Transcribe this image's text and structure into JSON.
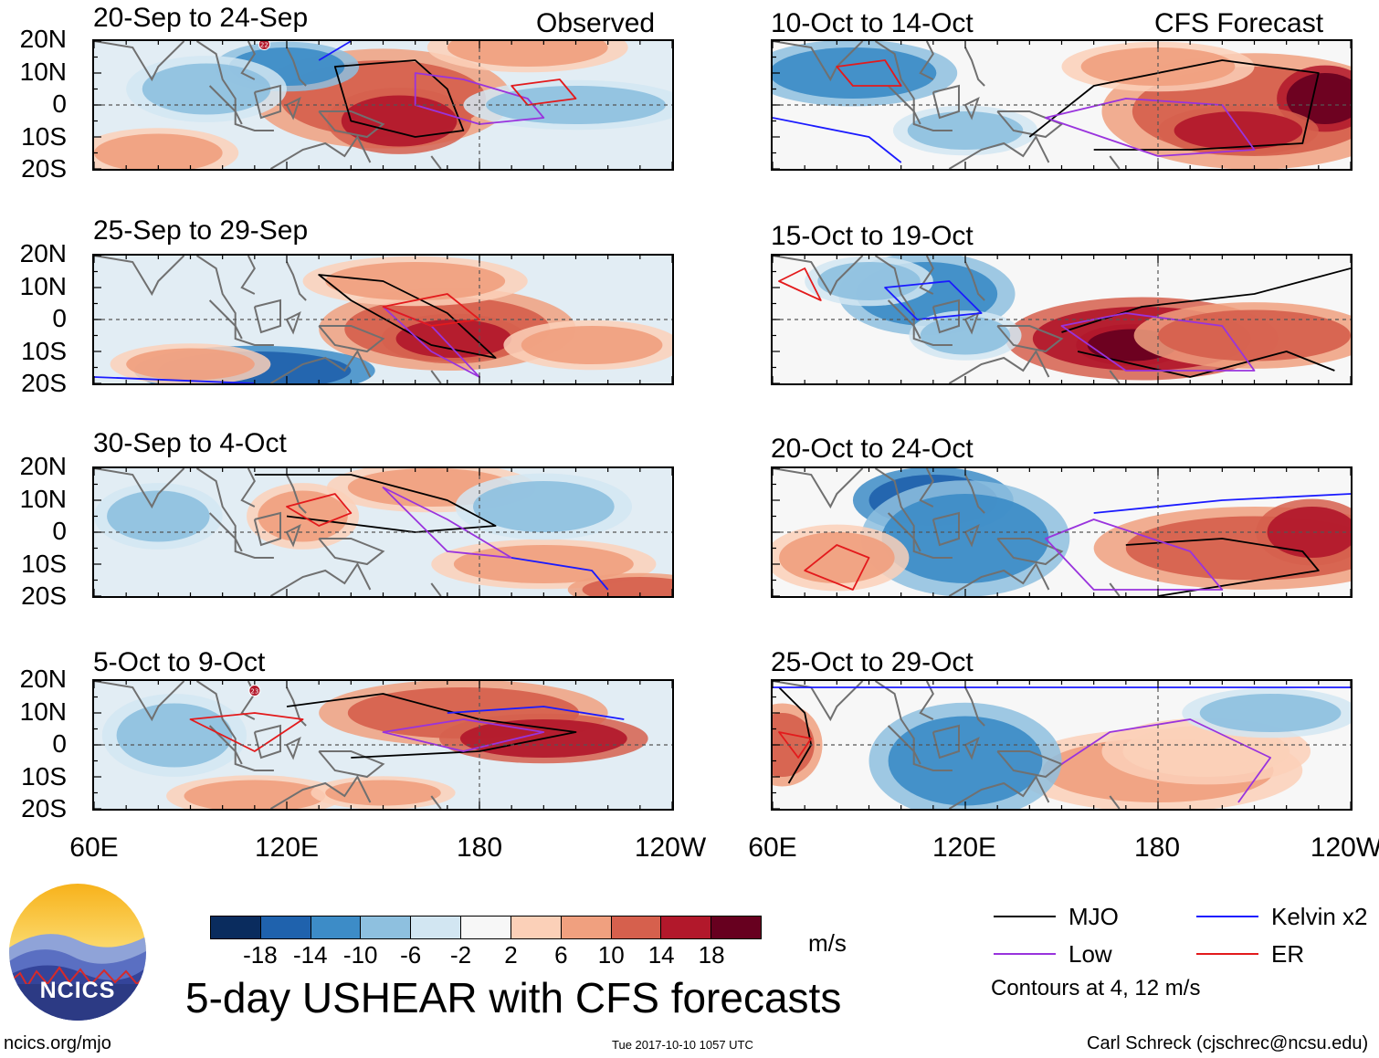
{
  "figure_title": "5-day USHEAR with CFS forecasts",
  "units": "m/s",
  "footer": {
    "left": "ncics.org/mjo",
    "center": "Tue 2017-10-10 1057 UTC",
    "right": "Carl Schreck (cjschrec@ncsu.edu)"
  },
  "logo": {
    "text": "NCICS"
  },
  "legend": {
    "items": [
      {
        "label": "MJO",
        "color": "#000000"
      },
      {
        "label": "Low",
        "color": "#9933dd"
      },
      {
        "label": "Kelvin x2",
        "color": "#1a1aff"
      },
      {
        "label": "ER",
        "color": "#e31a1c"
      }
    ],
    "note": "Contours at 4, 12 m/s"
  },
  "colorbar": {
    "labels": [
      "-18",
      "-14",
      "-10",
      "-6",
      "-2",
      "2",
      "6",
      "10",
      "14",
      "18"
    ],
    "colors": [
      "#0a2c5e",
      "#1f62ad",
      "#3d8cc7",
      "#8ec0df",
      "#d2e6f2",
      "#f7f7f7",
      "#fbd0b8",
      "#f0a07f",
      "#d6604d",
      "#b2182b",
      "#67001f"
    ]
  },
  "axes": {
    "y_ticks": [
      "20N",
      "10N",
      "0",
      "10S",
      "20S"
    ],
    "x_ticks": [
      "60E",
      "120E",
      "180",
      "120W"
    ]
  },
  "chart_data": [
    {
      "type": "heatmap",
      "column": "Observed",
      "title": "20-Sep to 24-Sep",
      "corner_label": "Observed",
      "x_range_deg_east": [
        60,
        240
      ],
      "y_range_deg": [
        -20,
        20
      ],
      "variable": "USHEAR anomaly (m/s)"
    },
    {
      "type": "heatmap",
      "column": "Observed",
      "title": "25-Sep to 29-Sep",
      "x_range_deg_east": [
        60,
        240
      ],
      "y_range_deg": [
        -20,
        20
      ],
      "variable": "USHEAR anomaly (m/s)"
    },
    {
      "type": "heatmap",
      "column": "Observed",
      "title": "30-Sep to 4-Oct",
      "x_range_deg_east": [
        60,
        240
      ],
      "y_range_deg": [
        -20,
        20
      ],
      "variable": "USHEAR anomaly (m/s)"
    },
    {
      "type": "heatmap",
      "column": "Observed",
      "title": "5-Oct to 9-Oct",
      "x_range_deg_east": [
        60,
        240
      ],
      "y_range_deg": [
        -20,
        20
      ],
      "variable": "USHEAR anomaly (m/s)"
    },
    {
      "type": "heatmap",
      "column": "CFS Forecast",
      "title": "10-Oct to 14-Oct",
      "corner_label": "CFS Forecast",
      "x_range_deg_east": [
        60,
        240
      ],
      "y_range_deg": [
        -20,
        20
      ],
      "variable": "USHEAR anomaly (m/s)"
    },
    {
      "type": "heatmap",
      "column": "CFS Forecast",
      "title": "15-Oct to 19-Oct",
      "x_range_deg_east": [
        60,
        240
      ],
      "y_range_deg": [
        -20,
        20
      ],
      "variable": "USHEAR anomaly (m/s)"
    },
    {
      "type": "heatmap",
      "column": "CFS Forecast",
      "title": "20-Oct to 24-Oct",
      "x_range_deg_east": [
        60,
        240
      ],
      "y_range_deg": [
        -20,
        20
      ],
      "variable": "USHEAR anomaly (m/s)"
    },
    {
      "type": "heatmap",
      "column": "CFS Forecast",
      "title": "25-Oct to 29-Oct",
      "x_range_deg_east": [
        60,
        240
      ],
      "y_range_deg": [
        -20,
        20
      ],
      "variable": "USHEAR anomaly (m/s)"
    }
  ],
  "storm_markers": [
    "22",
    "23"
  ]
}
